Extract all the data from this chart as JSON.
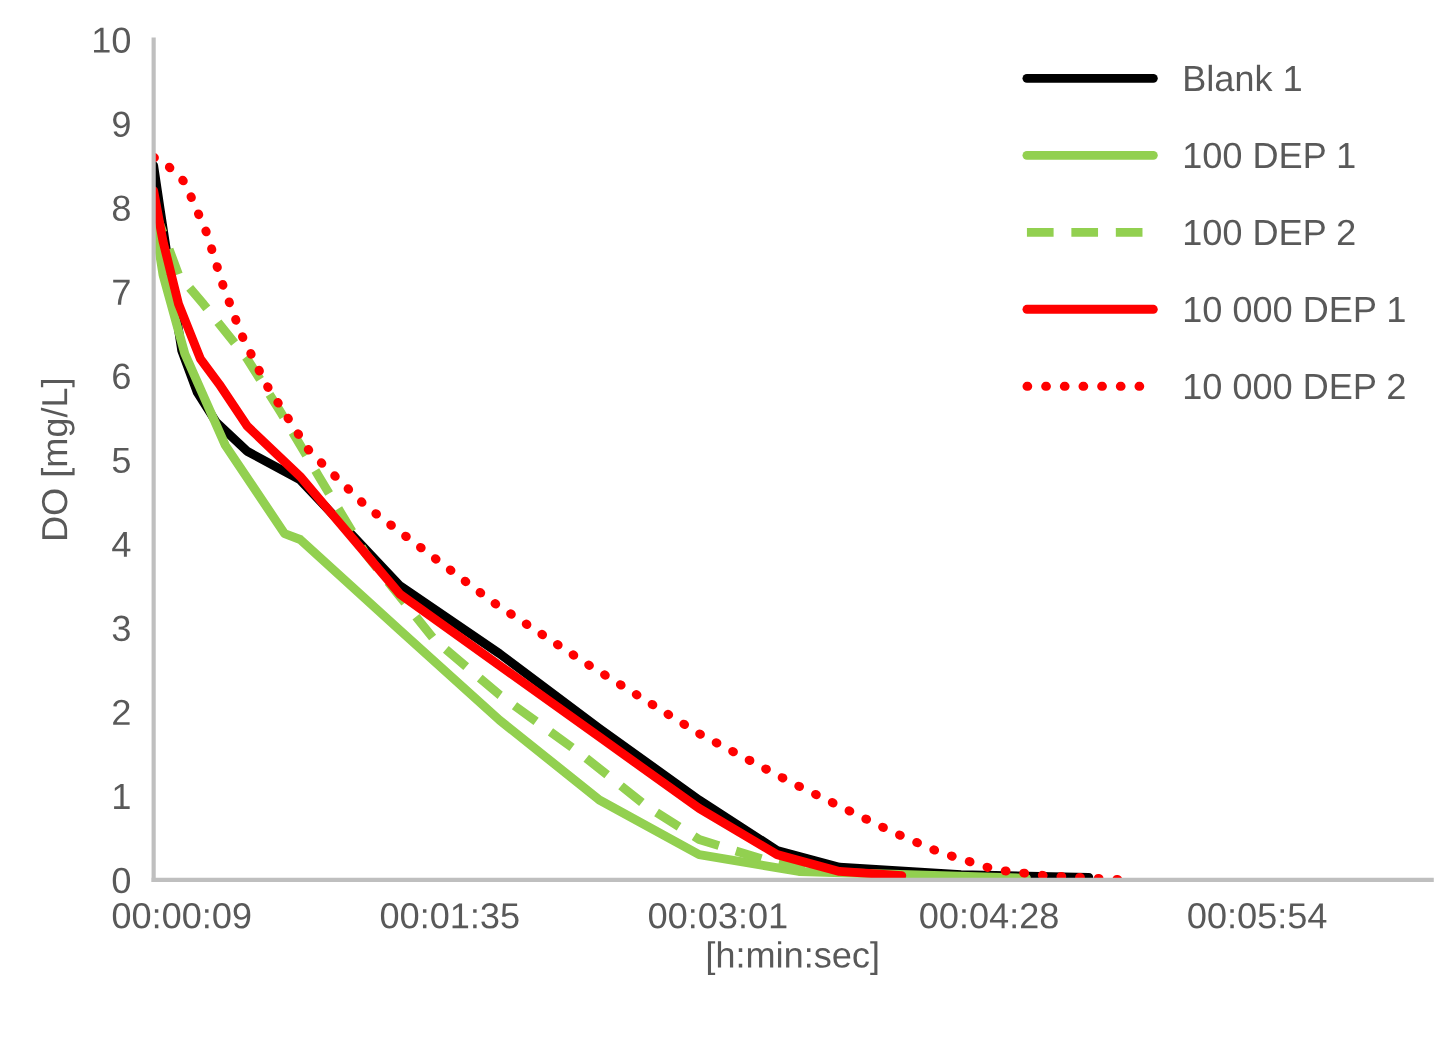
{
  "chart_data": {
    "type": "line",
    "xlabel": "[h:min:sec]",
    "ylabel": "DO [mg/L]",
    "xlim": [
      0,
      410
    ],
    "xticks": [
      {
        "value": 9,
        "label": "00:00:09"
      },
      {
        "value": 95,
        "label": "00:01:35"
      },
      {
        "value": 181,
        "label": "00:03:01"
      },
      {
        "value": 268,
        "label": "00:04:28"
      },
      {
        "value": 354,
        "label": "00:05:54"
      }
    ],
    "ylim": [
      0,
      10
    ],
    "yticks": [
      0,
      1,
      2,
      3,
      4,
      5,
      6,
      7,
      8,
      9,
      10
    ],
    "grid": false,
    "legend": "top right",
    "marker": "none",
    "series": [
      {
        "name": "Blank 1",
        "color": "#000000",
        "line_style": "solid",
        "x": [
          0,
          2,
          9,
          14,
          20,
          30,
          47,
          79,
          111,
          143,
          175,
          200,
          220,
          259,
          300
        ],
        "values": [
          8.5,
          8.0,
          6.3,
          5.8,
          5.45,
          5.1,
          4.76,
          3.5,
          2.69,
          1.8,
          0.95,
          0.35,
          0.15,
          0.06,
          0.03
        ]
      },
      {
        "name": "100 DEP 1",
        "color": "#92d050",
        "line_style": "solid",
        "x": [
          0,
          3,
          10,
          23,
          42,
          47,
          79,
          111,
          143,
          175,
          207,
          280
        ],
        "values": [
          7.9,
          7.2,
          6.26,
          5.17,
          4.12,
          4.05,
          2.97,
          1.9,
          0.95,
          0.3,
          0.1,
          0.02
        ]
      },
      {
        "name": "100 DEP 2",
        "color": "#92d050",
        "line_style": "dashed",
        "x": [
          0,
          8,
          16,
          30,
          41,
          53,
          68,
          90,
          111,
          137,
          158,
          175,
          195,
          217
        ],
        "values": [
          8.0,
          7.2,
          6.85,
          6.2,
          5.55,
          4.8,
          3.88,
          2.86,
          2.2,
          1.5,
          0.88,
          0.48,
          0.25,
          0.1
        ]
      },
      {
        "name": "10 000 DEP 1",
        "color": "#ff0000",
        "line_style": "solid",
        "x": [
          0,
          3,
          8,
          15,
          21,
          30,
          47,
          79,
          111,
          143,
          175,
          200,
          220,
          240
        ],
        "values": [
          8.2,
          7.6,
          6.85,
          6.2,
          5.9,
          5.4,
          4.8,
          3.4,
          2.55,
          1.7,
          0.85,
          0.3,
          0.1,
          0.05
        ]
      },
      {
        "name": "10 000 DEP 2",
        "color": "#ff0000",
        "line_style": "dotted",
        "x": [
          0,
          4.5,
          10,
          17,
          22,
          28,
          36,
          50,
          68,
          109,
          139,
          175,
          205,
          237,
          252,
          270,
          286,
          312
        ],
        "values": [
          8.6,
          8.5,
          8.3,
          7.7,
          7.1,
          6.5,
          5.9,
          5.1,
          4.45,
          3.3,
          2.57,
          1.74,
          1.15,
          0.57,
          0.33,
          0.12,
          0.05,
          0.0
        ]
      }
    ]
  }
}
